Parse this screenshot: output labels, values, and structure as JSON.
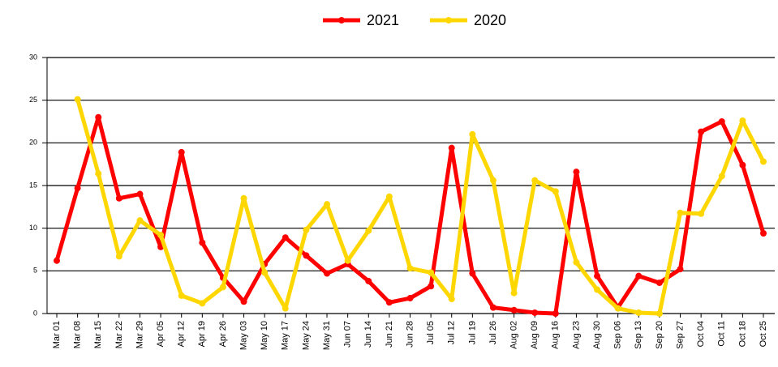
{
  "chart_data": {
    "type": "line",
    "categories": [
      "Mar 01",
      "Mar 08",
      "Mar 15",
      "Mar 22",
      "Mar 29",
      "Apr 05",
      "Apr 12",
      "Apr 19",
      "Apr 26",
      "May 03",
      "May 10",
      "May 17",
      "May 24",
      "May 31",
      "Jun 07",
      "Jun 14",
      "Jun 21",
      "Jun 28",
      "Jul 05",
      "Jul 12",
      "Jul 19",
      "Jul 26",
      "Aug 02",
      "Aug 09",
      "Aug 16",
      "Aug 23",
      "Aug 30",
      "Sep 06",
      "Sep 13",
      "Sep 20",
      "Sep 27",
      "Oct 04",
      "Oct 11",
      "Oct 18",
      "Oct 25"
    ],
    "series": [
      {
        "name": "2021",
        "color": "#ff0000",
        "values": [
          6.2,
          14.7,
          23,
          13.5,
          14,
          7.8,
          18.9,
          8.3,
          4.2,
          1.4,
          5.8,
          8.9,
          6.8,
          4.7,
          5.8,
          3.8,
          1.3,
          1.8,
          3.2,
          19.4,
          4.7,
          0.7,
          0.4,
          0.1,
          0,
          16.6,
          4.4,
          0.7,
          4.4,
          3.6,
          5.2,
          21.3,
          22.5,
          17.4,
          9.4
        ]
      },
      {
        "name": "2020",
        "color": "#ffd700",
        "values": [
          null,
          25.1,
          16.4,
          6.7,
          10.9,
          9.2,
          2.1,
          1.2,
          3.1,
          13.5,
          4.8,
          0.6,
          9.8,
          12.8,
          6.2,
          9.7,
          13.7,
          5.3,
          4.8,
          1.7,
          21,
          15.6,
          2.4,
          15.6,
          14.3,
          6,
          2.8,
          0.6,
          0.1,
          0,
          11.8,
          11.7,
          16.1,
          22.6,
          17.8
        ]
      }
    ],
    "ylim": [
      0,
      30
    ],
    "yticks": [
      0,
      5,
      10,
      15,
      20,
      25,
      30
    ],
    "grid": true,
    "legend": "top"
  }
}
